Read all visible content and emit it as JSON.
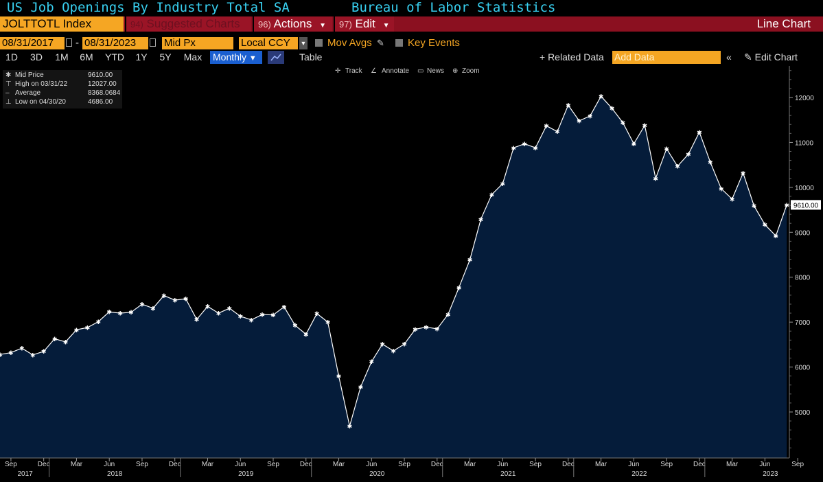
{
  "header": {
    "title": "US Job Openings By Industry Total SA",
    "source": "Bureau of Labor Statistics"
  },
  "toolbar": {
    "ticker": "JOLTTOTL Index",
    "suggested_num": "94)",
    "suggested_label": "Suggested Charts",
    "actions_num": "96)",
    "actions_label": "Actions",
    "edit_num": "97)",
    "edit_label": "Edit",
    "chart_type": "Line Chart"
  },
  "params": {
    "start_date": "08/31/2017",
    "dash": "-",
    "end_date": "08/31/2023",
    "price_field": "Mid Px",
    "currency": "Local CCY",
    "mov_avgs": "Mov Avgs",
    "key_events": "Key Events"
  },
  "ranges": {
    "items": [
      "1D",
      "3D",
      "1M",
      "6M",
      "YTD",
      "1Y",
      "5Y",
      "Max"
    ],
    "frequency": "Monthly",
    "table": "Table",
    "related": "+ Related Data",
    "add_data_placeholder": "Add Data",
    "edit_chart": "Edit Chart"
  },
  "chart_tools": [
    "Track",
    "Annotate",
    "News",
    "Zoom"
  ],
  "legend": {
    "rows": [
      {
        "label": "Mid Price",
        "value": "9610.00"
      },
      {
        "label": "High on 03/31/22",
        "value": "12027.00"
      },
      {
        "label": "Average",
        "value": "8368.0684"
      },
      {
        "label": "Low on 04/30/20",
        "value": "4686.00"
      }
    ]
  },
  "chart_data": {
    "type": "area",
    "title": "US Job Openings By Industry Total SA",
    "x_start": "2017-08",
    "frequency": "monthly",
    "x_tick_labels": [
      "Sep",
      "Dec",
      "Mar",
      "Jun",
      "Sep",
      "Dec",
      "Mar",
      "Jun",
      "Sep",
      "Dec",
      "Mar",
      "Jun",
      "Sep",
      "Dec",
      "Mar",
      "Jun",
      "Sep",
      "Dec",
      "Mar",
      "Jun",
      "Sep",
      "Dec",
      "Mar",
      "Jun",
      "Sep"
    ],
    "year_labels": [
      "2017",
      "2018",
      "2019",
      "2020",
      "2021",
      "2022",
      "2023"
    ],
    "y_ticks": [
      5000,
      6000,
      7000,
      8000,
      9000,
      10000,
      11000,
      12000
    ],
    "ylim": [
      4100,
      12550
    ],
    "last_value_label": "9610.00",
    "series": [
      {
        "values": [
          6280,
          6320,
          6420,
          6270,
          6350,
          6630,
          6560,
          6830,
          6880,
          7010,
          7230,
          7200,
          7220,
          7400,
          7310,
          7590,
          7490,
          7520,
          7060,
          7350,
          7200,
          7310,
          7130,
          7050,
          7170,
          7160,
          7340,
          6930,
          6730,
          7190,
          7000,
          5800,
          4686,
          5560,
          6120,
          6510,
          6360,
          6510,
          6840,
          6890,
          6850,
          7170,
          7770,
          8390,
          9290,
          9840,
          10080,
          10880,
          10970,
          10880,
          11370,
          11240,
          11830,
          11480,
          11590,
          12027,
          11760,
          11440,
          10970,
          11380,
          10200,
          10860,
          10470,
          10740,
          11230,
          10560,
          9970,
          9740,
          10320,
          9590,
          9170,
          8920,
          9610
        ],
        "color": "#ffffff",
        "fill": "#051c3a"
      }
    ]
  }
}
